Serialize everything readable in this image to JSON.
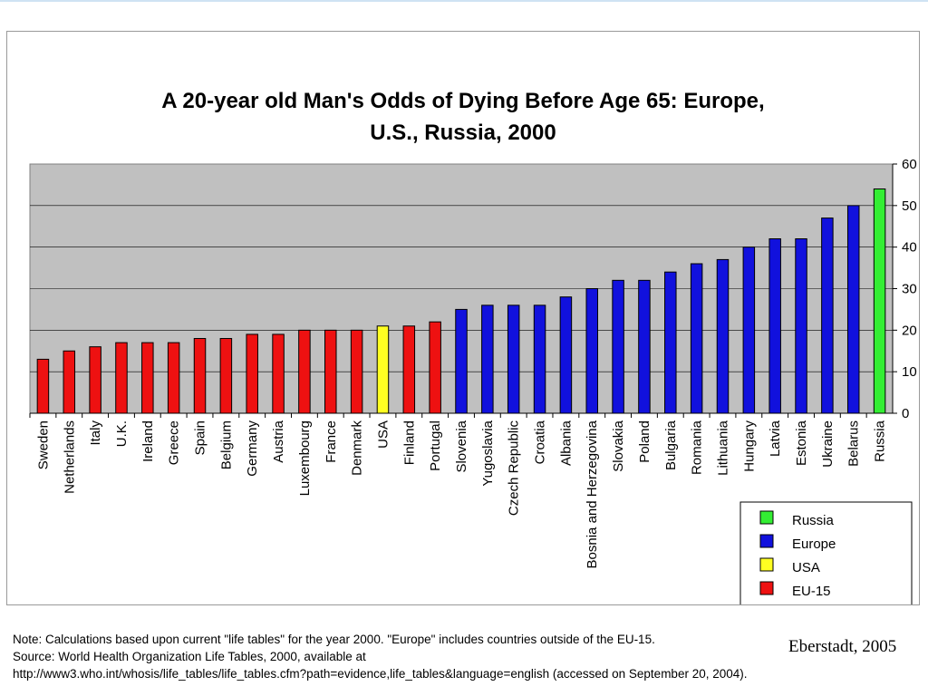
{
  "chart_data": {
    "type": "bar",
    "title_lines": [
      "A 20-year old Man's Odds of Dying Before Age 65: Europe,",
      "U.S., Russia, 2000"
    ],
    "categories": [
      "Sweden",
      "Netherlands",
      "Italy",
      "U.K.",
      "Ireland",
      "Greece",
      "Spain",
      "Belgium",
      "Germany",
      "Austria",
      "Luxembourg",
      "France",
      "Denmark",
      "USA",
      "Finland",
      "Portugal",
      "Slovenia",
      "Yugoslavia",
      "Czech Republic",
      "Croatia",
      "Albania",
      "Bosnia and Herzegovina",
      "Slovakia",
      "Poland",
      "Bulgaria",
      "Romania",
      "Lithuania",
      "Hungary",
      "Latvia",
      "Estonia",
      "Ukraine",
      "Belarus",
      "Russia"
    ],
    "values": [
      13,
      15,
      16,
      17,
      17,
      17,
      18,
      18,
      19,
      19,
      20,
      20,
      20,
      21,
      21,
      22,
      25,
      26,
      26,
      26,
      28,
      30,
      32,
      32,
      34,
      36,
      37,
      40,
      42,
      42,
      47,
      50,
      54
    ],
    "groups": [
      "EU-15",
      "EU-15",
      "EU-15",
      "EU-15",
      "EU-15",
      "EU-15",
      "EU-15",
      "EU-15",
      "EU-15",
      "EU-15",
      "EU-15",
      "EU-15",
      "EU-15",
      "USA",
      "EU-15",
      "EU-15",
      "Europe",
      "Europe",
      "Europe",
      "Europe",
      "Europe",
      "Europe",
      "Europe",
      "Europe",
      "Europe",
      "Europe",
      "Europe",
      "Europe",
      "Europe",
      "Europe",
      "Europe",
      "Europe",
      "Russia"
    ],
    "ylim": [
      0,
      60
    ],
    "yticks": [
      "0",
      "10",
      "20",
      "30",
      "40",
      "50",
      "60"
    ],
    "y_axis_side": "right",
    "grid": true,
    "plot_background": "#c0c0c0",
    "legend": {
      "placement": "bottom-right",
      "entries": [
        {
          "label": "Russia",
          "color": "#33ee33"
        },
        {
          "label": "Europe",
          "color": "#1111dd"
        },
        {
          "label": "USA",
          "color": "#ffff22"
        },
        {
          "label": "EU-15",
          "color": "#ee1111"
        }
      ]
    }
  },
  "footnote": {
    "line1": "Note: Calculations based upon current \"life tables\" for the year 2000.  \"Europe\" includes countries outside of the EU-15.",
    "line2": "Source: World Health Organization Life Tables, 2000, available at",
    "line3": "http://www3.who.int/whosis/life_tables/life_tables.cfm?path=evidence,life_tables&language=english (accessed on September 20, 2004)."
  },
  "attribution": "Eberstadt, 2005"
}
